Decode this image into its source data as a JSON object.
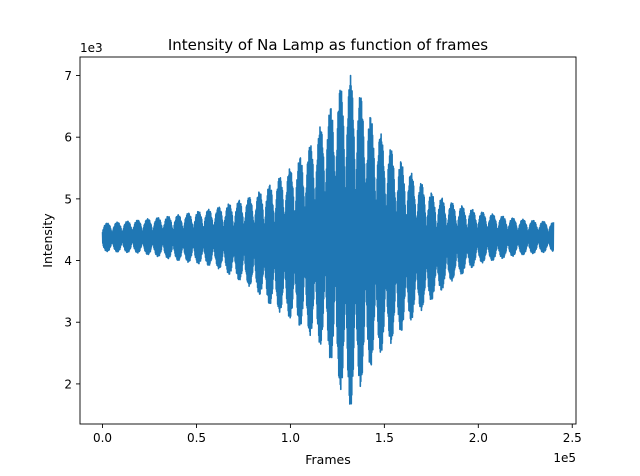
{
  "chart_data": {
    "type": "line",
    "title": "Intensity of Na Lamp as function of frames",
    "xlabel": "Frames",
    "ylabel": "Intensity",
    "x_offset_label": "1e5",
    "y_offset_label": "1e3",
    "xlim": [
      -12000,
      252000
    ],
    "ylim": [
      1350,
      7300
    ],
    "x_ticks": [
      0,
      50000,
      100000,
      150000,
      200000,
      250000
    ],
    "x_tick_labels": [
      "0.0",
      "0.5",
      "1.0",
      "1.5",
      "2.0",
      "2.5"
    ],
    "y_ticks": [
      2000,
      3000,
      4000,
      5000,
      6000,
      7000
    ],
    "y_tick_labels": [
      "2",
      "3",
      "4",
      "5",
      "6",
      "7"
    ],
    "grid": false,
    "series": [
      {
        "color": "#1f77b4",
        "center_value": 4400,
        "peak_frame": 132000,
        "beat_period_frames": 5400,
        "x_range": [
          0,
          240000
        ],
        "envelope": {
          "x": [
            0,
            20000,
            40000,
            60000,
            80000,
            90000,
            100000,
            110000,
            120000,
            125000,
            132000,
            138000,
            145000,
            155000,
            165000,
            175000,
            185000,
            200000,
            220000,
            240000
          ],
          "max": [
            4600,
            4660,
            4740,
            4850,
            5050,
            5250,
            5500,
            5850,
            6400,
            6750,
            7000,
            6650,
            6200,
            5750,
            5400,
            5100,
            4950,
            4800,
            4680,
            4620
          ],
          "min": [
            4150,
            4120,
            4000,
            3900,
            3550,
            3250,
            3050,
            2800,
            2500,
            2000,
            1600,
            2000,
            2400,
            2700,
            3050,
            3350,
            3650,
            3950,
            4080,
            4150
          ]
        }
      }
    ]
  }
}
